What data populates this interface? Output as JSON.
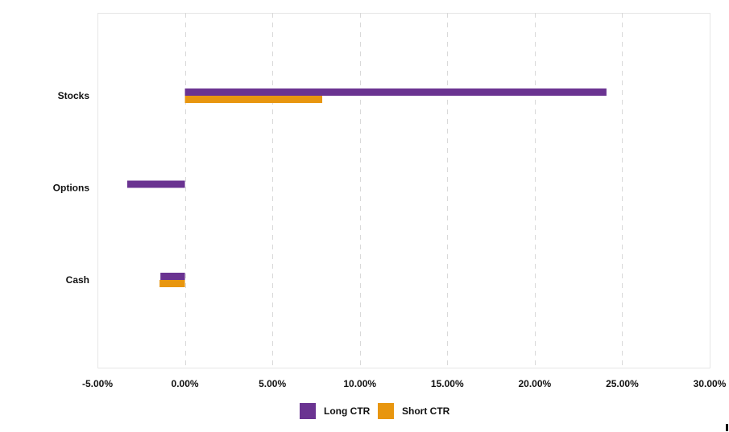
{
  "chart_data": {
    "type": "bar",
    "orientation": "horizontal",
    "categories": [
      "Stocks",
      "Options",
      "Cash"
    ],
    "series": [
      {
        "name": "Long CTR",
        "color": "#6a3391",
        "values": [
          24.1,
          -3.3,
          -1.4
        ]
      },
      {
        "name": "Short CTR",
        "color": "#e8960f",
        "values": [
          7.85,
          null,
          -1.45
        ]
      }
    ],
    "xlim": [
      -5,
      30
    ],
    "x_ticks": [
      -5,
      0,
      5,
      10,
      15,
      20,
      25,
      30
    ],
    "x_tick_labels": [
      "-5.00%",
      "0.00%",
      "5.00%",
      "10.00%",
      "15.00%",
      "20.00%",
      "25.00%",
      "30.00%"
    ],
    "grid": "vertical dashed",
    "legend_position": "bottom"
  }
}
